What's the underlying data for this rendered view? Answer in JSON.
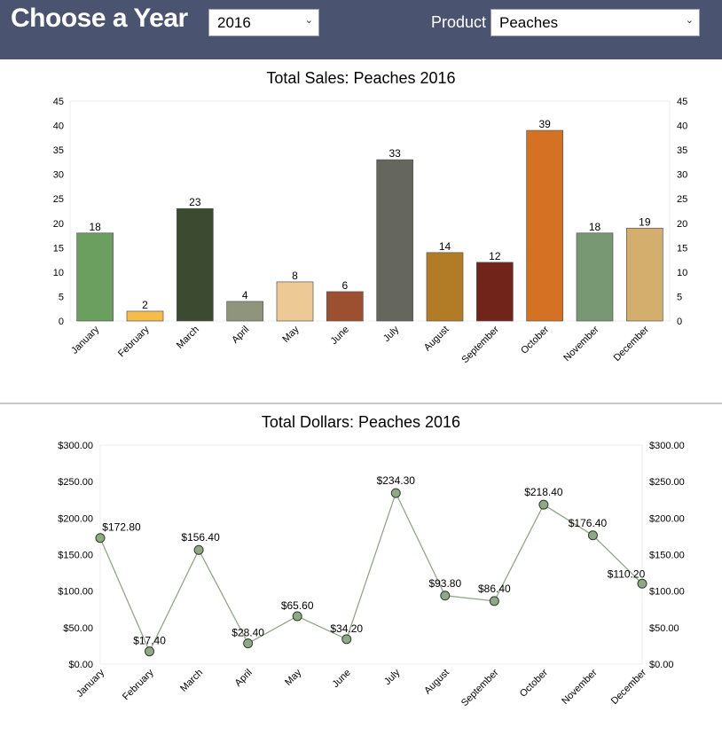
{
  "header": {
    "title": "Choose a Year",
    "year_value": "2016",
    "product_label": "Product",
    "product_value": "Peaches",
    "background": "#4a5470"
  },
  "chart_data": [
    {
      "type": "bar",
      "title": "Total Sales: Peaches 2016",
      "categories": [
        "January",
        "February",
        "March",
        "April",
        "May",
        "June",
        "July",
        "August",
        "September",
        "October",
        "November",
        "December"
      ],
      "values": [
        18,
        2,
        23,
        4,
        8,
        6,
        33,
        14,
        12,
        39,
        18,
        19
      ],
      "data_labels": [
        "18",
        "2",
        "23",
        "4",
        "8",
        "6",
        "33",
        "14",
        "12",
        "39",
        "18",
        "19"
      ],
      "colors": [
        "#6a9f60",
        "#f5bc4a",
        "#3c4a30",
        "#8e957a",
        "#ecc995",
        "#9c5030",
        "#65665e",
        "#b27c27",
        "#70241a",
        "#d57123",
        "#789874",
        "#d4ae6c"
      ],
      "ylim": [
        0,
        45
      ],
      "yticks": [
        "0",
        "5",
        "10",
        "15",
        "20",
        "25",
        "30",
        "35",
        "40",
        "45"
      ],
      "grid": false
    },
    {
      "type": "line",
      "title": "Total Dollars: Peaches 2016",
      "categories": [
        "January",
        "February",
        "March",
        "April",
        "May",
        "June",
        "July",
        "August",
        "September",
        "October",
        "November",
        "December"
      ],
      "values": [
        172.8,
        17.4,
        156.4,
        28.4,
        65.6,
        34.2,
        234.3,
        93.8,
        86.4,
        218.4,
        176.4,
        110.2
      ],
      "data_labels": [
        "$172.80",
        "$17.40",
        "$156.40",
        "$28.40",
        "$65.60",
        "$34.20",
        "$234.30",
        "$93.80",
        "$86.40",
        "$218.40",
        "$176.40",
        "$110.20"
      ],
      "line_color": "#8fa886",
      "marker_color": "#8fa886",
      "ylim": [
        0,
        300
      ],
      "yticks": [
        "$0.00",
        "$50.00",
        "$100.00",
        "$150.00",
        "$200.00",
        "$250.00",
        "$300.00"
      ],
      "grid": false
    }
  ]
}
